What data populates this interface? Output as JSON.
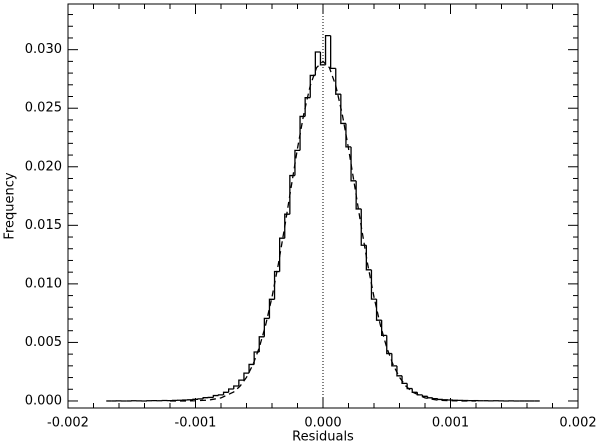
{
  "chart_data": {
    "type": "histogram",
    "x_label": "Residuals",
    "y_label": "Frequency",
    "bins": [
      -0.0017,
      -0.00166,
      -0.00162,
      -0.00158,
      -0.00154,
      -0.0015,
      -0.00146,
      -0.00142,
      -0.00138,
      -0.00134,
      -0.0013,
      -0.00126,
      -0.00122,
      -0.00118,
      -0.00114,
      -0.0011,
      -0.00106,
      -0.00102,
      -0.00098,
      -0.00094,
      -0.0009,
      -0.00086,
      -0.00082,
      -0.00078,
      -0.00074,
      -0.0007,
      -0.00066,
      -0.00062,
      -0.00058,
      -0.00054,
      -0.0005,
      -0.00046,
      -0.00042,
      -0.00038,
      -0.00034,
      -0.0003,
      -0.00026,
      -0.00022,
      -0.00018,
      -0.00014,
      -0.0001,
      -6e-05,
      -2e-05,
      2e-05,
      6e-05,
      0.0001,
      0.00014,
      0.00018,
      0.00022,
      0.00026,
      0.0003,
      0.00034,
      0.00038,
      0.00042,
      0.00046,
      0.0005,
      0.00054,
      0.00058,
      0.00062,
      0.00066,
      0.0007,
      0.00074,
      0.00078,
      0.00082,
      0.00086,
      0.0009,
      0.00094,
      0.00098,
      0.00102,
      0.00106,
      0.0011,
      0.00114,
      0.00118,
      0.00122,
      0.00126,
      0.0013,
      0.00134,
      0.00138,
      0.00142,
      0.00146,
      0.0015,
      0.00154,
      0.00158,
      0.00162,
      0.00166,
      0.0017
    ],
    "values": [
      0,
      0,
      1e-05,
      0,
      0,
      2e-05,
      1e-05,
      0,
      2e-05,
      3e-05,
      2e-05,
      4e-05,
      3e-05,
      5e-05,
      6e-05,
      8e-05,
      0.0001,
      0.00014,
      0.00018,
      0.00028,
      0.0003,
      0.00046,
      0.00052,
      0.00074,
      0.00102,
      0.00128,
      0.00178,
      0.00238,
      0.00312,
      0.00418,
      0.00548,
      0.00705,
      0.00868,
      0.01105,
      0.0139,
      0.01595,
      0.01925,
      0.0214,
      0.0243,
      0.0259,
      0.0278,
      0.0298,
      0.0287,
      0.0312,
      0.0284,
      0.0262,
      0.0237,
      0.0217,
      0.0188,
      0.0164,
      0.0133,
      0.0112,
      0.0087,
      0.0069,
      0.0056,
      0.00405,
      0.003,
      0.00215,
      0.0015,
      0.00106,
      0.00074,
      0.00052,
      0.0004,
      0.00027,
      0.0002,
      0.00013,
      0.0001,
      8e-05,
      6e-05,
      5e-05,
      4e-05,
      3e-05,
      3e-05,
      2e-05,
      2e-05,
      1e-05,
      2e-05,
      1e-05,
      0,
      1e-05,
      0,
      0,
      0,
      0,
      0
    ],
    "color": "#000000",
    "fit": {
      "style": "dashed",
      "color": "#000000",
      "x": [
        -0.0012,
        -0.0011,
        -0.001,
        -0.0009,
        -0.0008,
        -0.0007,
        -0.00065,
        -0.0006,
        -0.00055,
        -0.0005,
        -0.00045,
        -0.0004,
        -0.00035,
        -0.0003,
        -0.00025,
        -0.0002,
        -0.00015,
        -0.0001,
        -5e-05,
        0,
        5e-05,
        0.0001,
        0.00015,
        0.0002,
        0.00025,
        0.0003,
        0.00035,
        0.0004,
        0.00045,
        0.0005,
        0.00055,
        0.0006,
        0.00065,
        0.0007,
        0.0008,
        0.0009,
        0.001,
        0.0011,
        0.0012
      ],
      "values": [
        0,
        0,
        2e-05,
        7e-05,
        0.00026,
        0.00077,
        0.00127,
        0.00202,
        0.00309,
        0.00456,
        0.00648,
        0.00887,
        0.0117,
        0.01489,
        0.01825,
        0.02157,
        0.02455,
        0.02693,
        0.02847,
        0.029,
        0.02847,
        0.02693,
        0.02455,
        0.02157,
        0.01825,
        0.01489,
        0.0117,
        0.00887,
        0.00648,
        0.00456,
        0.00309,
        0.00202,
        0.00127,
        0.00077,
        0.00026,
        7e-05,
        2e-05,
        0,
        0
      ]
    },
    "reference_line": {
      "x": 0,
      "style": "dotted"
    },
    "xlim": [
      -0.002,
      0.002
    ],
    "ylim": [
      -0.0006,
      0.0339
    ],
    "xticks": [
      -0.002,
      -0.001,
      {
        "value": 0,
        "label": "0.000"
      },
      0.001,
      0.002
    ],
    "yticks": [
      {
        "value": 0,
        "label": "0.000"
      },
      0.005,
      {
        "value": 0.01,
        "label": "0.010"
      },
      0.015,
      {
        "value": 0.02,
        "label": "0.020"
      },
      0.025,
      {
        "value": 0.03,
        "label": "0.030"
      }
    ],
    "x_minor_divisions": 5,
    "y_minor_divisions": 5
  }
}
